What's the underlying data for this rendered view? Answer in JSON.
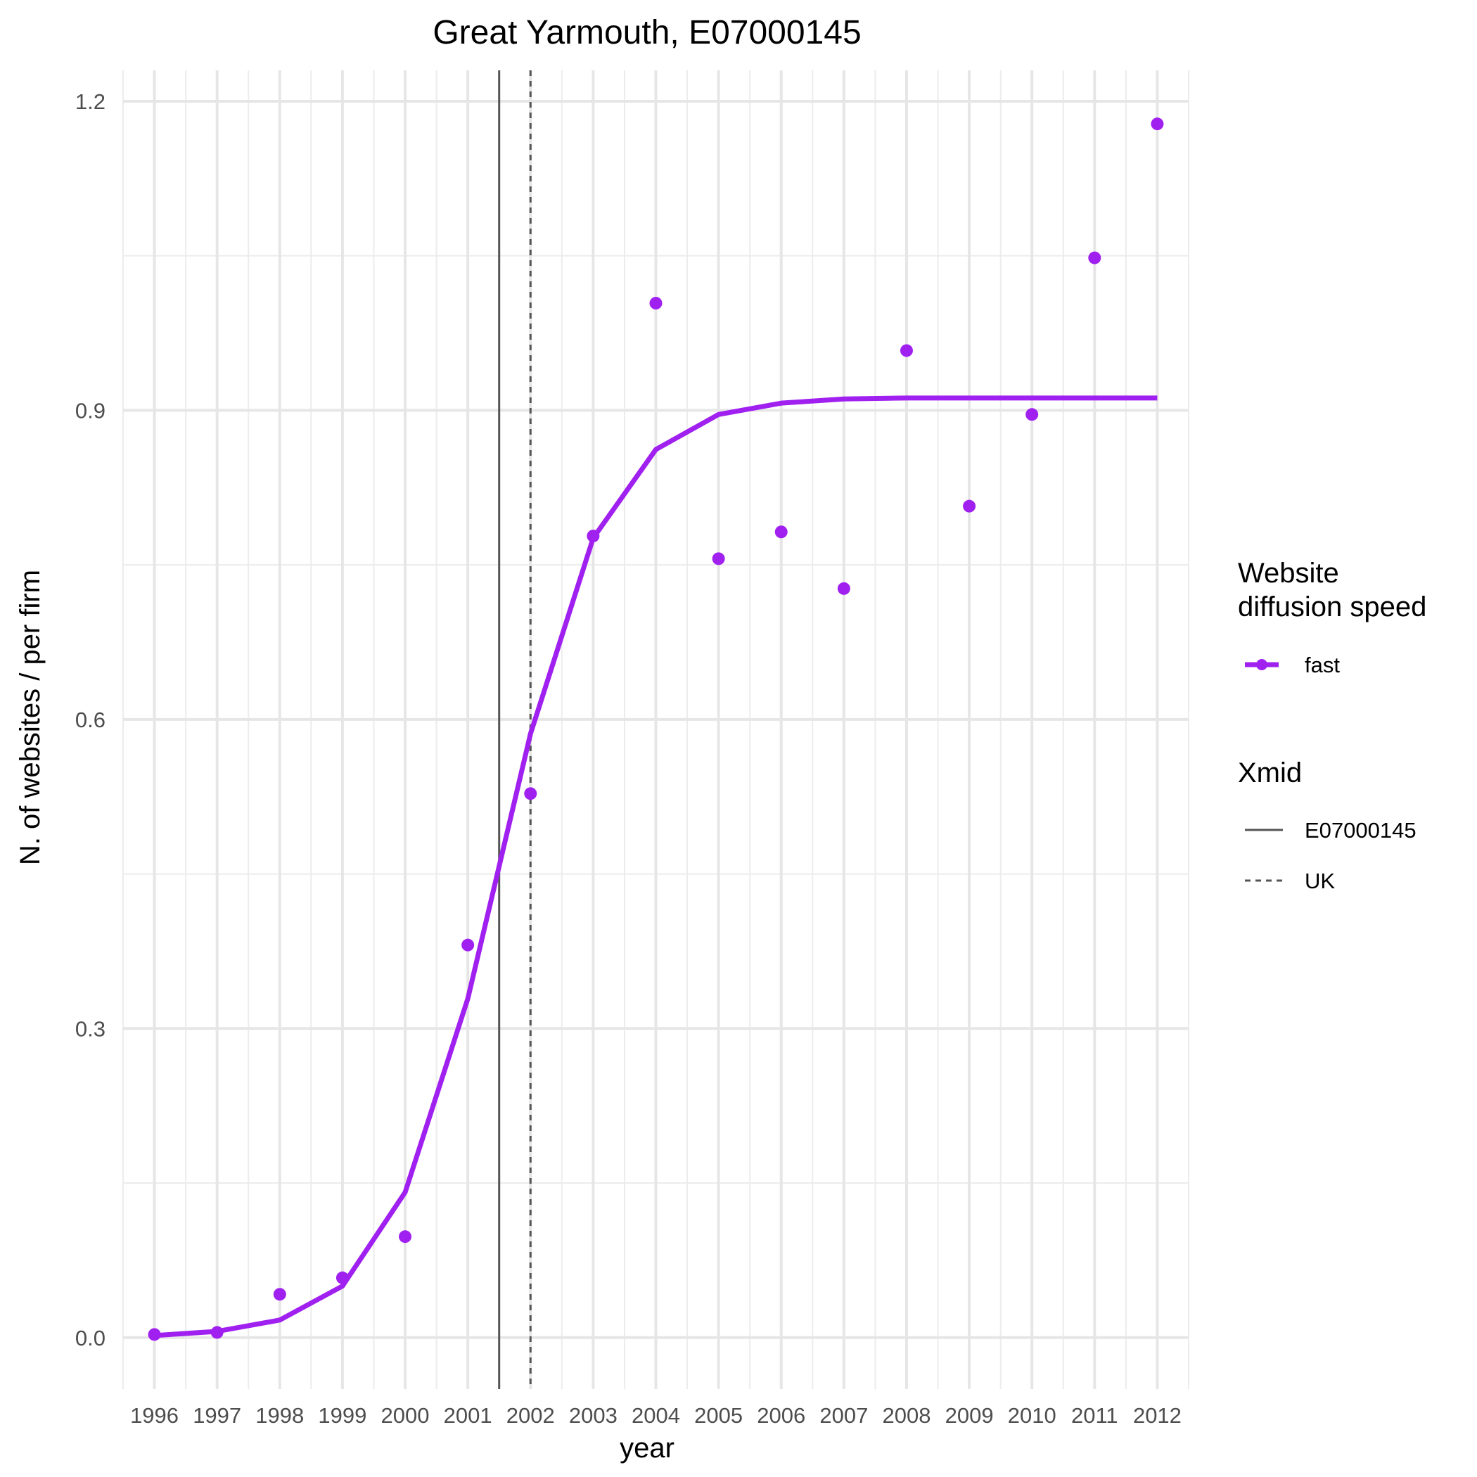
{
  "chart_data": {
    "type": "line",
    "title": "Great Yarmouth, E07000145",
    "xlabel": "year",
    "ylabel": "N. of websites / per firm",
    "x_ticks": [
      "1996",
      "1997",
      "1998",
      "1999",
      "2000",
      "2001",
      "2002",
      "2003",
      "2004",
      "2005",
      "2006",
      "2007",
      "2008",
      "2009",
      "2010",
      "2011",
      "2012"
    ],
    "y_ticks": [
      "0.0",
      "0.3",
      "0.6",
      "0.9",
      "1.2"
    ],
    "xlim": [
      1995.5,
      2012.5
    ],
    "ylim": [
      -0.05,
      1.23
    ],
    "grid": true,
    "legend_position": "right",
    "series": [
      {
        "name": "fast",
        "color": "#a020f0",
        "x": [
          1996,
          1997,
          1998,
          1999,
          2000,
          2001,
          2002,
          2003,
          2004,
          2005,
          2006,
          2007,
          2008,
          2009,
          2010,
          2011,
          2012
        ],
        "fitted": [
          0.002,
          0.006,
          0.017,
          0.05,
          0.141,
          0.329,
          0.586,
          0.776,
          0.862,
          0.896,
          0.907,
          0.911,
          0.912,
          0.912,
          0.912,
          0.912,
          0.912
        ],
        "observed": [
          0.003,
          0.005,
          0.042,
          0.058,
          0.098,
          0.381,
          0.528,
          0.778,
          1.004,
          0.756,
          0.782,
          0.727,
          0.958,
          0.807,
          0.896,
          1.048,
          1.178
        ]
      }
    ],
    "vlines": [
      {
        "name": "E07000145",
        "x": 2001.5,
        "style": "solid",
        "color": "#555555"
      },
      {
        "name": "UK",
        "x": 2002,
        "style": "dashed",
        "color": "#555555"
      }
    ],
    "legend": {
      "speed_title_line1": "Website",
      "speed_title_line2": "diffusion speed",
      "speed_label": "fast",
      "xmid_title": "Xmid",
      "xmid_labels": [
        "E07000145",
        "UK"
      ]
    }
  }
}
